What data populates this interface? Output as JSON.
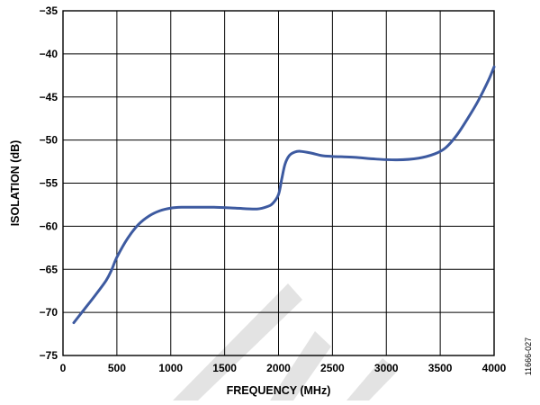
{
  "figure_id": "11666-027",
  "chart_data": {
    "type": "line",
    "title": "",
    "xlabel": "FREQUENCY (MHz)",
    "ylabel": "ISOLATION (dB)",
    "xlim": [
      0,
      4000
    ],
    "ylim": [
      -75,
      -35
    ],
    "x_ticks": [
      0,
      500,
      1000,
      1500,
      2000,
      2500,
      3000,
      3500,
      4000
    ],
    "y_ticks": [
      -35,
      -40,
      -45,
      -50,
      -55,
      -60,
      -65,
      -70,
      -75
    ],
    "y_tick_labels": [
      "−35",
      "−40",
      "−45",
      "−50",
      "−55",
      "−60",
      "−65",
      "−70",
      "−75"
    ],
    "grid": true,
    "series": [
      {
        "color": "#3d5aa0",
        "x": [
          100,
          200,
          300,
          400,
          450,
          500,
          600,
          700,
          800,
          900,
          1000,
          1100,
          1200,
          1400,
          1600,
          1800,
          1900,
          1950,
          2000,
          2030,
          2060,
          2100,
          2150,
          2200,
          2300,
          2400,
          2500,
          2700,
          2900,
          3100,
          3300,
          3450,
          3550,
          3650,
          3750,
          3850,
          3950,
          4000
        ],
        "y": [
          -71.2,
          -69.6,
          -68.0,
          -66.3,
          -65.1,
          -63.6,
          -61.4,
          -59.8,
          -58.8,
          -58.2,
          -57.9,
          -57.8,
          -57.8,
          -57.8,
          -57.9,
          -58.0,
          -57.7,
          -57.3,
          -56.3,
          -54.5,
          -52.8,
          -51.8,
          -51.4,
          -51.3,
          -51.5,
          -51.8,
          -51.9,
          -52.0,
          -52.2,
          -52.3,
          -52.1,
          -51.6,
          -50.9,
          -49.5,
          -47.6,
          -45.5,
          -43.0,
          -41.5
        ]
      }
    ]
  }
}
